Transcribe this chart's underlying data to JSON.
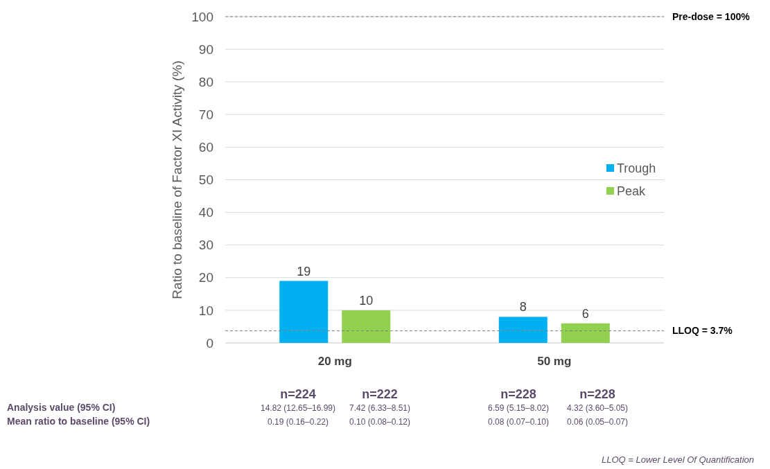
{
  "chart_data": {
    "type": "bar",
    "ylabel": "Ratio to baseline of Factor XI Activity (%)",
    "categories": [
      "20 mg",
      "50 mg"
    ],
    "series": [
      {
        "name": "Trough",
        "color": "#00b0f0",
        "values": [
          19,
          8
        ]
      },
      {
        "name": "Peak",
        "color": "#92d050",
        "values": [
          10,
          6
        ]
      }
    ],
    "ylim": [
      0,
      100
    ],
    "yticks": [
      0,
      10,
      20,
      30,
      40,
      50,
      60,
      70,
      80,
      90,
      100
    ],
    "grid": "y",
    "legend": "right",
    "data_labels": true,
    "ref_lines": [
      {
        "axis": "y",
        "value": 100,
        "label": "Pre-dose = 100%",
        "line_style": "dashed"
      },
      {
        "axis": "y",
        "value": 3.7,
        "label": "LLOQ = 3.7%",
        "line_style": "dashed"
      }
    ],
    "annotations": [
      "n=224",
      "n=222",
      "n=228",
      "n=228",
      "Analysis value (95% CI)",
      "14.82 (12.65–16.99)",
      "7.42 (6.33–8.51)",
      "6.59 (5.15–8.02)",
      "4.32 (3.60–5.05)",
      "Mean ratio to baseline (95% CI)",
      "0.19 (0.16–0.22)",
      "0.10 (0.08–0.12)",
      "0.08 (0.07–0.10)",
      "0.06 (0.05–0.07)",
      "LLOQ = Lower Level Of Quantification"
    ]
  }
}
